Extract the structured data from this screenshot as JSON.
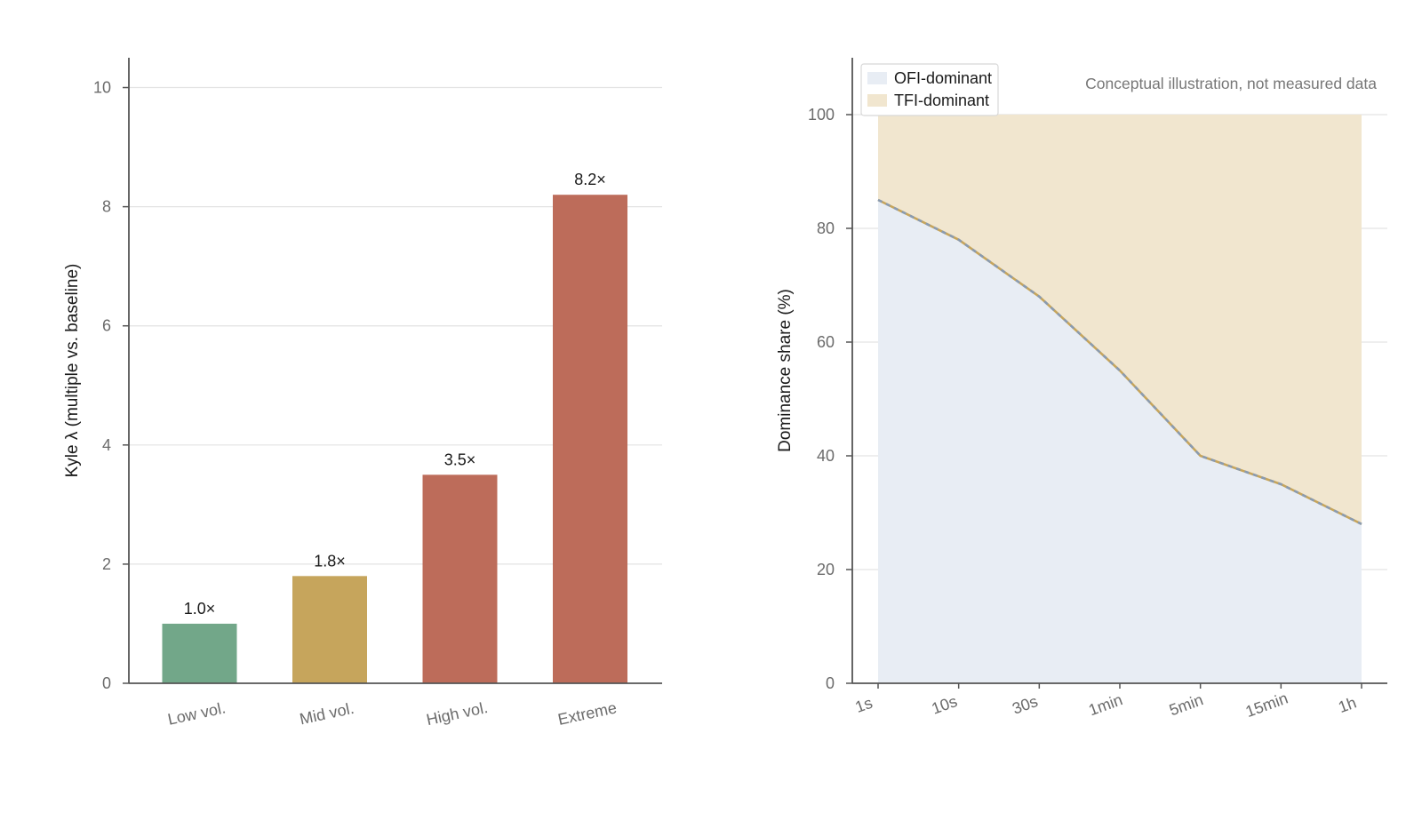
{
  "chart_data": [
    {
      "type": "bar",
      "categories": [
        "Low vol.",
        "Mid vol.",
        "High vol.",
        "Extreme"
      ],
      "values": [
        1.0,
        1.8,
        3.5,
        8.2
      ],
      "data_labels": [
        "1.0×",
        "1.8×",
        "3.5×",
        "8.2×"
      ],
      "colors": [
        "#72a789",
        "#c6a55c",
        "#bd6c5a",
        "#bd6c5a"
      ],
      "title": "",
      "xlabel": "",
      "ylabel": "Kyle λ (multiple vs. baseline)",
      "ylim": [
        0,
        10.5
      ],
      "yticks": [
        0,
        2,
        4,
        6,
        8,
        10
      ],
      "grid": true
    },
    {
      "type": "area",
      "categories": [
        "1s",
        "10s",
        "30s",
        "1min",
        "5min",
        "15min",
        "1h"
      ],
      "series": [
        {
          "name": "OFI-dominant",
          "values": [
            85,
            78,
            68,
            55,
            40,
            35,
            28
          ],
          "color": "#e8edf4"
        },
        {
          "name": "TFI-dominant",
          "values": [
            15,
            22,
            32,
            45,
            60,
            65,
            72
          ],
          "color": "#f1e6cf"
        }
      ],
      "stacked": true,
      "title": "",
      "xlabel": "",
      "ylabel": "Dominance share (%)",
      "ylim": [
        0,
        110
      ],
      "yticks": [
        0,
        20,
        40,
        60,
        80,
        100
      ],
      "grid": true,
      "legend_position": "top-left",
      "annotation": "Conceptual illustration, not measured data",
      "boundary_line_colors": [
        "#c6a55c",
        "#8a9bb0"
      ]
    }
  ]
}
